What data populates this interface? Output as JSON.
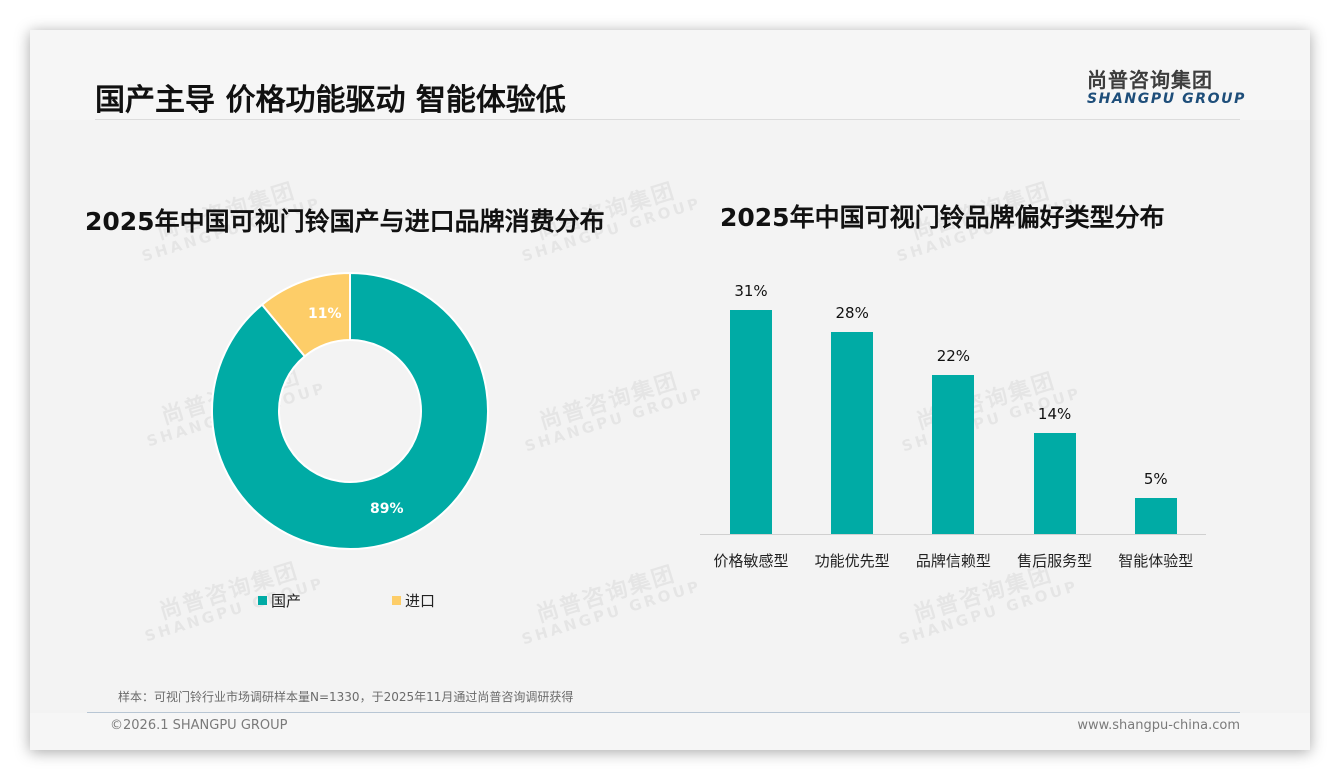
{
  "page": {
    "title": "国产主导 价格功能驱动 智能体验低",
    "logo_cn": "尚普咨询集团",
    "logo_en": "SHANGPU GROUP",
    "watermark_cn": "尚普咨询集团",
    "watermark_en": "SHANGPU GROUP",
    "note": "样本：可视门铃行业市场调研样本量N=1330，于2025年11月通过尚普咨询调研获得",
    "copyright": "©2026.1 SHANGPU GROUP",
    "website": "www.shangpu-china.com"
  },
  "colors": {
    "teal": "#00aba5",
    "yellow": "#fdcd68",
    "background": "#f3f3f3",
    "logo_blue": "#1e4e7a"
  },
  "chart_data": [
    {
      "type": "pie",
      "variant": "donut",
      "title": "2025年中国可视门铃国产与进口品牌消费分布",
      "categories": [
        "国产",
        "进口"
      ],
      "values": [
        89,
        11
      ],
      "labels": [
        "89%",
        "11%"
      ],
      "colors": [
        "#00aba5",
        "#fdcd68"
      ],
      "legend_position": "bottom"
    },
    {
      "type": "bar",
      "title": "2025年中国可视门铃品牌偏好类型分布",
      "categories": [
        "价格敏感型",
        "功能优先型",
        "品牌信赖型",
        "售后服务型",
        "智能体验型"
      ],
      "values": [
        31,
        28,
        22,
        14,
        5
      ],
      "labels": [
        "31%",
        "28%",
        "22%",
        "14%",
        "5%"
      ],
      "color": "#00aba5",
      "xlabel": "",
      "ylabel": "",
      "grid": false,
      "ylim": [
        0,
        31
      ]
    }
  ]
}
